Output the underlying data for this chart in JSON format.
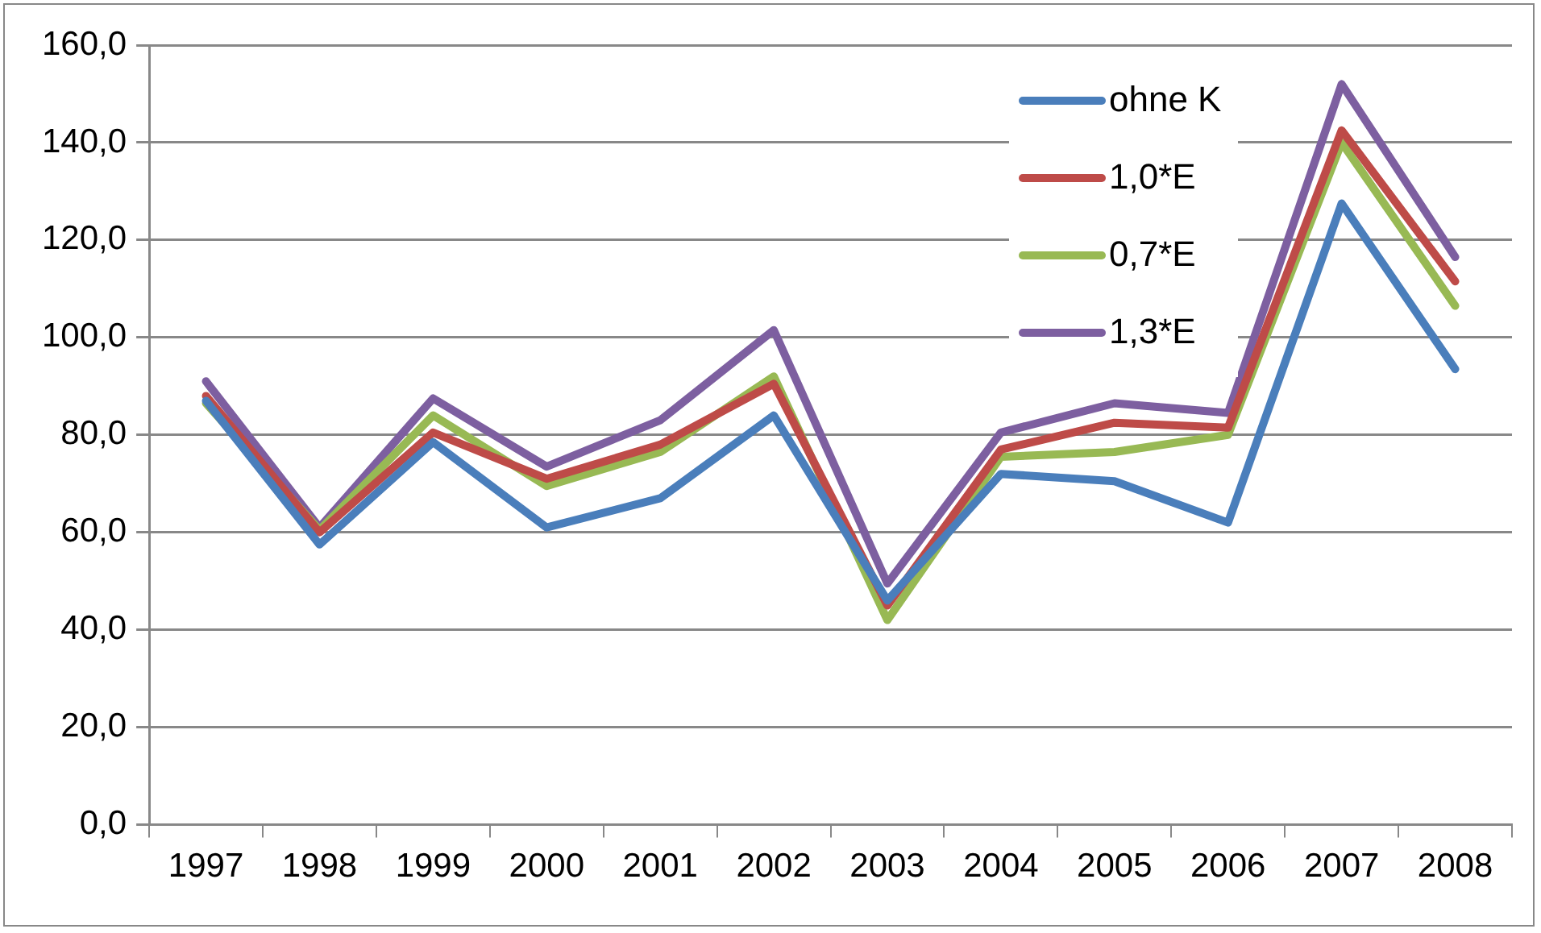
{
  "chart_data": {
    "type": "line",
    "categories": [
      "1997",
      "1998",
      "1999",
      "2000",
      "2001",
      "2002",
      "2003",
      "2004",
      "2005",
      "2006",
      "2007",
      "2008"
    ],
    "series": [
      {
        "name": "ohne K",
        "color": "#4a7ebb",
        "values": [
          87,
          57.5,
          78.5,
          61,
          67,
          84,
          46,
          72,
          70.5,
          62,
          127.5,
          93.5
        ]
      },
      {
        "name": "1,0*E",
        "color": "#be4b48",
        "values": [
          88,
          60,
          80.5,
          71,
          78,
          90.5,
          45,
          77,
          82.5,
          81.5,
          142.5,
          111.5
        ]
      },
      {
        "name": "0,7*E",
        "color": "#98b954",
        "values": [
          86.5,
          60.5,
          84,
          69.5,
          76.5,
          92,
          42,
          75.5,
          76.5,
          80,
          140,
          106.5
        ]
      },
      {
        "name": "1,3*E",
        "color": "#7d5fa0",
        "values": [
          91,
          61,
          87.5,
          73.5,
          83,
          101.5,
          49.5,
          80.5,
          86.5,
          84.5,
          152,
          116.5
        ]
      }
    ],
    "ylim": [
      0,
      160
    ],
    "yticks": [
      {
        "value": 0,
        "label": "0,0"
      },
      {
        "value": 20,
        "label": "20,0"
      },
      {
        "value": 40,
        "label": "40,0"
      },
      {
        "value": 60,
        "label": "60,0"
      },
      {
        "value": 80,
        "label": "80,0"
      },
      {
        "value": 100,
        "label": "100,0"
      },
      {
        "value": 120,
        "label": "120,0"
      },
      {
        "value": 140,
        "label": "140,0"
      },
      {
        "value": 160,
        "label": "160,0"
      }
    ],
    "grid": "y",
    "legend": "top right",
    "marker": "none",
    "line_style": "solid"
  }
}
